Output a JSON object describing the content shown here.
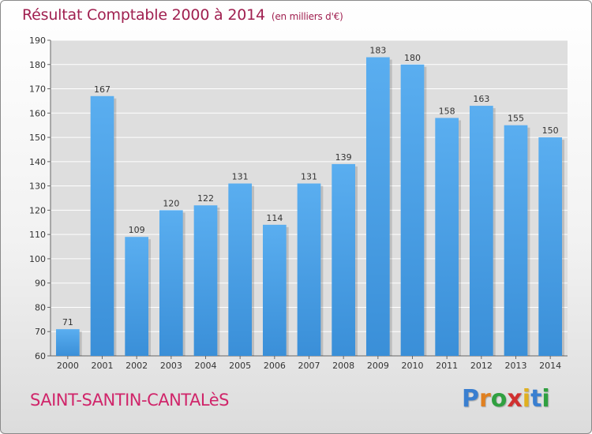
{
  "header": {
    "title": "Résultat Comptable 2000 à 2014",
    "subtitle": "(en milliers d'€)"
  },
  "footer": {
    "commune": "SAINT-SANTIN-CANTALèS",
    "logo": [
      "P",
      "r",
      "o",
      "x",
      "i",
      "t",
      "i"
    ]
  },
  "colors": {
    "bar": "#3a8fd8",
    "bar_light": "#5aaef0",
    "title": "#a02050",
    "commune": "#d0256a",
    "logo": [
      "#3a7fd0",
      "#e08020",
      "#30a040",
      "#d03030",
      "#e0b020",
      "#3a7fd0",
      "#30a040"
    ]
  },
  "chart_data": {
    "type": "bar",
    "title": "Résultat Comptable 2000 à 2014",
    "subtitle": "(en milliers d'€)",
    "categories": [
      "2000",
      "2001",
      "2002",
      "2003",
      "2004",
      "2005",
      "2006",
      "2007",
      "2008",
      "2009",
      "2010",
      "2011",
      "2012",
      "2013",
      "2014"
    ],
    "values": [
      71,
      167,
      109,
      120,
      122,
      131,
      114,
      131,
      139,
      183,
      180,
      158,
      163,
      155,
      150
    ],
    "ylim": [
      60,
      190
    ],
    "yticks": [
      60,
      70,
      80,
      90,
      100,
      110,
      120,
      130,
      140,
      150,
      160,
      170,
      180,
      190
    ],
    "grid": true
  }
}
